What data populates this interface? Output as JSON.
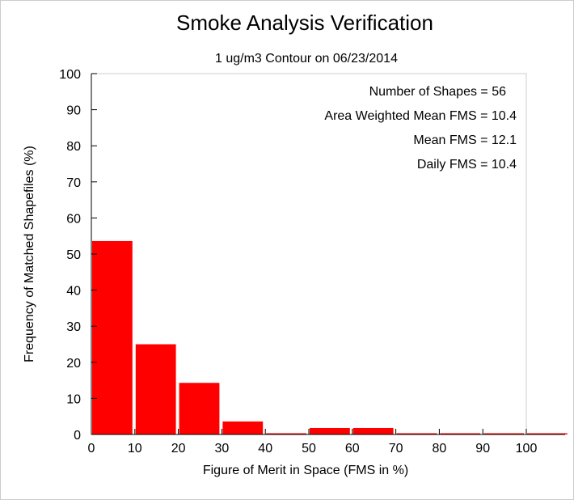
{
  "chart_data": {
    "type": "bar",
    "title": "Smoke Analysis Verification",
    "subtitle": "1 ug/m3 Contour on 06/23/2014",
    "xlabel": "Figure of Merit in Space (FMS in %)",
    "ylabel": "Frequency of Matched Shapefiles (%)",
    "xlim": [
      0,
      110
    ],
    "ylim": [
      0,
      100
    ],
    "xticks": [
      0,
      10,
      20,
      30,
      40,
      50,
      60,
      70,
      80,
      90,
      100
    ],
    "yticks": [
      0,
      10,
      20,
      30,
      40,
      50,
      60,
      70,
      80,
      90,
      100
    ],
    "bin_width": 10,
    "bins": [
      {
        "start": 0,
        "value": 53.6
      },
      {
        "start": 10,
        "value": 25.0
      },
      {
        "start": 20,
        "value": 14.3
      },
      {
        "start": 30,
        "value": 3.6
      },
      {
        "start": 40,
        "value": 0
      },
      {
        "start": 50,
        "value": 1.8
      },
      {
        "start": 60,
        "value": 1.8
      },
      {
        "start": 70,
        "value": 0
      },
      {
        "start": 80,
        "value": 0
      },
      {
        "start": 90,
        "value": 0
      },
      {
        "start": 100,
        "value": 0
      }
    ],
    "bar_color": "#ff0000",
    "annotations": [
      "Number of Shapes = 56",
      "Area Weighted Mean FMS = 10.4",
      "Mean FMS = 12.1",
      "Daily FMS = 10.4"
    ],
    "grid": false
  }
}
